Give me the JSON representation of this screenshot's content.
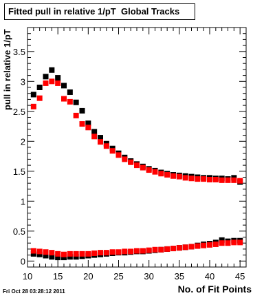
{
  "title": "Fitted pull in relative 1/pT  Global Tracks",
  "timestamp": "Fri Oct 28 03:28:12 2011",
  "chart_data": {
    "type": "scatter",
    "title": "Fitted pull in relative 1/pT  Global Tracks",
    "xlabel": "No. of Fit Points",
    "ylabel": "pull in relative 1/pT",
    "xlim": [
      10,
      46
    ],
    "ylim": [
      -0.1,
      3.9
    ],
    "xticks": [
      "10",
      "15",
      "20",
      "25",
      "30",
      "35",
      "40",
      "45"
    ],
    "yticks": [
      "0",
      "0.5",
      "1",
      "1.5",
      "2",
      "2.5",
      "3",
      "3.5"
    ],
    "grid": false,
    "series": [
      {
        "color": "#000000",
        "x": [
          11,
          12,
          13,
          14,
          15,
          16,
          17,
          18,
          19,
          20,
          21,
          22,
          23,
          24,
          25,
          26,
          27,
          28,
          29,
          30,
          31,
          32,
          33,
          34,
          35,
          36,
          37,
          38,
          39,
          40,
          41,
          42,
          43,
          44,
          45
        ],
        "y": [
          2.78,
          2.9,
          3.08,
          3.19,
          3.06,
          2.93,
          2.82,
          2.65,
          2.51,
          2.3,
          2.16,
          2.06,
          1.96,
          1.88,
          1.8,
          1.73,
          1.67,
          1.62,
          1.58,
          1.54,
          1.51,
          1.48,
          1.46,
          1.44,
          1.43,
          1.42,
          1.41,
          1.4,
          1.39,
          1.39,
          1.38,
          1.38,
          1.37,
          1.39,
          1.32
        ]
      },
      {
        "color": "#ff0000",
        "x": [
          11,
          12,
          13,
          14,
          15,
          16,
          17,
          18,
          19,
          20,
          21,
          22,
          23,
          24,
          25,
          26,
          27,
          28,
          29,
          30,
          31,
          32,
          33,
          34,
          35,
          36,
          37,
          38,
          39,
          40,
          41,
          42,
          43,
          44,
          45
        ],
        "y": [
          2.58,
          2.72,
          2.97,
          3.0,
          2.97,
          2.71,
          2.66,
          2.43,
          2.29,
          2.23,
          2.08,
          1.99,
          1.92,
          1.84,
          1.77,
          1.7,
          1.65,
          1.6,
          1.56,
          1.52,
          1.49,
          1.46,
          1.44,
          1.42,
          1.41,
          1.39,
          1.38,
          1.37,
          1.37,
          1.36,
          1.36,
          1.35,
          1.35,
          1.35,
          1.34
        ]
      },
      {
        "color": "#000000",
        "x": [
          11,
          12,
          13,
          14,
          15,
          16,
          17,
          18,
          19,
          20,
          21,
          22,
          23,
          24,
          25,
          26,
          27,
          28,
          29,
          30,
          31,
          32,
          33,
          34,
          35,
          36,
          37,
          38,
          39,
          40,
          41,
          42,
          43,
          44,
          45
        ],
        "y": [
          0.12,
          0.11,
          0.09,
          0.07,
          0.06,
          0.06,
          0.07,
          0.07,
          0.08,
          0.09,
          0.1,
          0.11,
          0.12,
          0.13,
          0.14,
          0.14,
          0.15,
          0.16,
          0.16,
          0.17,
          0.18,
          0.19,
          0.2,
          0.21,
          0.22,
          0.23,
          0.24,
          0.26,
          0.28,
          0.29,
          0.31,
          0.35,
          0.33,
          0.34,
          0.34
        ]
      },
      {
        "color": "#ff0000",
        "x": [
          11,
          12,
          13,
          14,
          15,
          16,
          17,
          18,
          19,
          20,
          21,
          22,
          23,
          24,
          25,
          26,
          27,
          28,
          29,
          30,
          31,
          32,
          33,
          34,
          35,
          36,
          37,
          38,
          39,
          40,
          41,
          42,
          43,
          44,
          45
        ],
        "y": [
          0.17,
          0.16,
          0.15,
          0.14,
          0.12,
          0.11,
          0.12,
          0.12,
          0.12,
          0.12,
          0.13,
          0.14,
          0.14,
          0.15,
          0.15,
          0.16,
          0.16,
          0.17,
          0.17,
          0.18,
          0.19,
          0.19,
          0.2,
          0.21,
          0.22,
          0.23,
          0.24,
          0.25,
          0.26,
          0.27,
          0.28,
          0.3,
          0.3,
          0.31,
          0.31
        ]
      }
    ]
  }
}
